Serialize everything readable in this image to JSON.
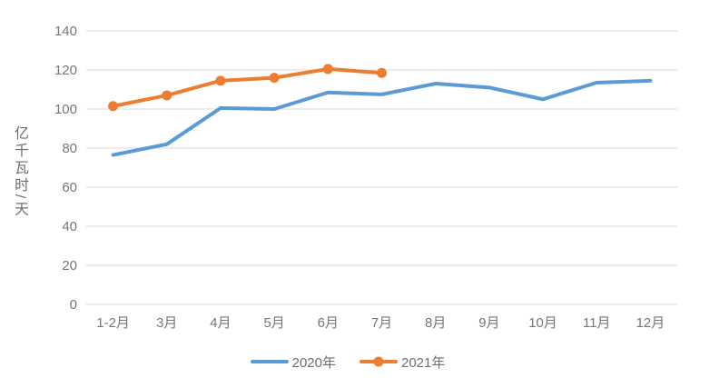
{
  "chart_data": {
    "type": "line",
    "title": "",
    "xlabel": "",
    "ylabel": "亿千瓦时/天",
    "categories": [
      "1-2月",
      "3月",
      "4月",
      "5月",
      "6月",
      "7月",
      "8月",
      "9月",
      "10月",
      "11月",
      "12月"
    ],
    "series": [
      {
        "name": "2020年",
        "color": "#5B9BD5",
        "marker": "none",
        "values": [
          76.5,
          82,
          100.5,
          100,
          108.5,
          107.5,
          113,
          111,
          105,
          113.5,
          114.5
        ]
      },
      {
        "name": "2021年",
        "color": "#ED7D31",
        "marker": "circle",
        "values": [
          101.5,
          107,
          114.5,
          116,
          120.5,
          118.5
        ]
      }
    ],
    "ylim": [
      0,
      140
    ],
    "y_ticks": [
      0,
      20,
      40,
      60,
      80,
      100,
      120,
      140
    ],
    "grid": true,
    "legend_position": "bottom"
  },
  "style": {
    "grid_color": "#d9d9d9",
    "tick_text_color": "#767676",
    "background": "#ffffff"
  }
}
